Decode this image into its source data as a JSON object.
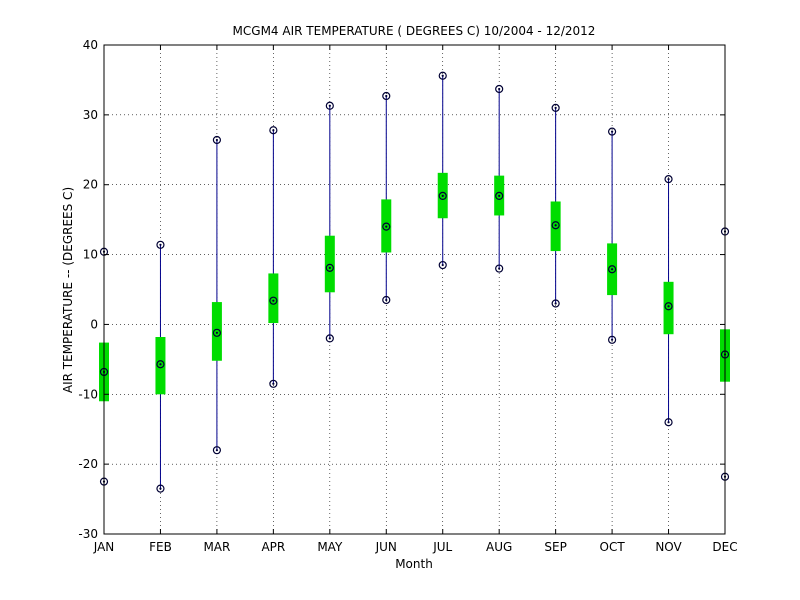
{
  "chart_data": {
    "type": "boxplot",
    "title": "MCGM4  AIR TEMPERATURE ( DEGREES C) 10/2004 - 12/2012",
    "xlabel": "Month",
    "ylabel": "AIR TEMPERATURE -- (DEGREES C)",
    "ylim": [
      -30,
      40
    ],
    "yticks": [
      -30,
      -20,
      -10,
      0,
      10,
      20,
      30,
      40
    ],
    "grid": true,
    "colors": {
      "whisker": "#00008b",
      "box": "#00dd00",
      "marker": "#000033"
    },
    "categories": [
      "JAN",
      "FEB",
      "MAR",
      "APR",
      "MAY",
      "JUN",
      "JUL",
      "AUG",
      "SEP",
      "OCT",
      "NOV",
      "DEC"
    ],
    "min": [
      -22.5,
      -23.5,
      -18.0,
      -8.5,
      -2.0,
      3.5,
      8.5,
      8.0,
      3.0,
      -2.2,
      -14.0,
      -21.8
    ],
    "q1": [
      -11.0,
      -10.0,
      -5.2,
      0.2,
      4.6,
      10.3,
      15.2,
      15.6,
      10.5,
      4.2,
      -1.4,
      -8.2
    ],
    "median": [
      -6.8,
      -5.7,
      -1.2,
      3.4,
      8.1,
      14.0,
      18.4,
      18.4,
      14.2,
      7.9,
      2.6,
      -4.3
    ],
    "q3": [
      -2.6,
      -1.8,
      3.2,
      7.3,
      12.7,
      17.9,
      21.7,
      21.3,
      17.6,
      11.6,
      6.1,
      -0.7
    ],
    "max": [
      10.4,
      11.4,
      26.4,
      27.8,
      31.3,
      32.7,
      35.6,
      33.7,
      31.0,
      27.6,
      20.8,
      13.3
    ]
  }
}
